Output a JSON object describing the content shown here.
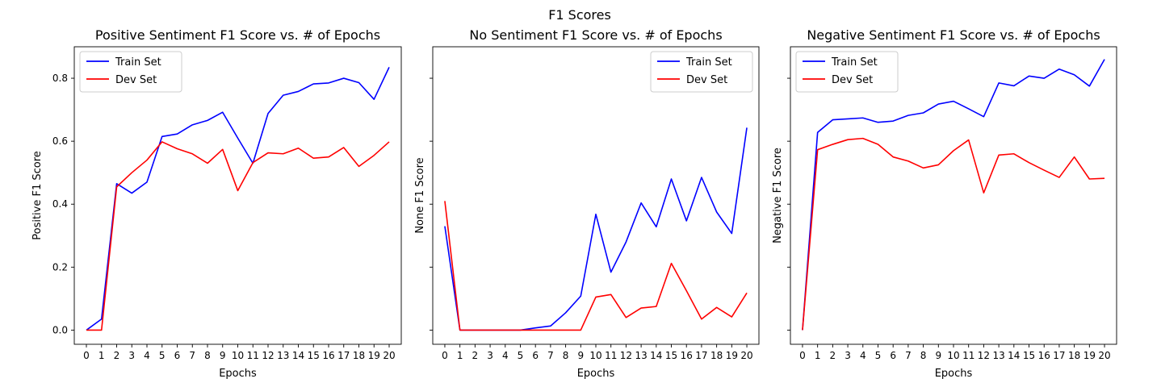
{
  "figure": {
    "title": "F1 Scores"
  },
  "chart_data": [
    {
      "type": "line",
      "title": "Positive Sentiment F1 Score vs. # of Epochs",
      "xlabel": "Epochs",
      "ylabel": "Positive F1 Score",
      "xlim": [
        -0.8,
        20.8
      ],
      "ylim": [
        -0.045,
        0.9
      ],
      "xticks": [
        0,
        1,
        2,
        3,
        4,
        5,
        6,
        7,
        8,
        9,
        10,
        11,
        12,
        13,
        14,
        15,
        16,
        17,
        18,
        19,
        20
      ],
      "xtick_labels": [
        "0",
        "1",
        "2",
        "3",
        "4",
        "5",
        "6",
        "7",
        "8",
        "9",
        "10",
        "11",
        "12",
        "13",
        "14",
        "15",
        "16",
        "17",
        "18",
        "19",
        "20"
      ],
      "yticks": [
        0.0,
        0.2,
        0.4,
        0.6,
        0.8
      ],
      "ytick_labels": [
        "0.0",
        "0.2",
        "0.4",
        "0.6",
        "0.8"
      ],
      "grid": false,
      "legend": "upper-left",
      "series": [
        {
          "name": "Train Set",
          "color": "#0000ff",
          "values": [
            0.0,
            0.035,
            0.465,
            0.435,
            0.47,
            0.615,
            0.623,
            0.652,
            0.666,
            0.692,
            0.61,
            0.53,
            0.688,
            0.746,
            0.758,
            0.782,
            0.785,
            0.8,
            0.786,
            0.733,
            0.835
          ]
        },
        {
          "name": "Dev Set",
          "color": "#ff0000",
          "values": [
            0.0,
            0.0,
            0.455,
            0.5,
            0.54,
            0.598,
            0.576,
            0.56,
            0.53,
            0.574,
            0.443,
            0.532,
            0.563,
            0.56,
            0.578,
            0.546,
            0.55,
            0.58,
            0.52,
            0.555,
            0.598
          ]
        }
      ]
    },
    {
      "type": "line",
      "title": "No Sentiment F1 Score vs. # of Epochs",
      "xlabel": "Epochs",
      "ylabel": "None F1 Score",
      "xlim": [
        -0.8,
        20.8
      ],
      "ylim": [
        -0.045,
        0.9
      ],
      "xticks": [
        0,
        1,
        2,
        3,
        4,
        5,
        6,
        7,
        8,
        9,
        10,
        11,
        12,
        13,
        14,
        15,
        16,
        17,
        18,
        19,
        20
      ],
      "xtick_labels": [
        "0",
        "1",
        "2",
        "3",
        "4",
        "5",
        "6",
        "7",
        "8",
        "9",
        "10",
        "11",
        "12",
        "13",
        "14",
        "15",
        "16",
        "17",
        "18",
        "19",
        "20"
      ],
      "yticks": [
        0.0,
        0.2,
        0.4,
        0.6,
        0.8
      ],
      "ytick_labels": [],
      "grid": false,
      "legend": "upper-right",
      "series": [
        {
          "name": "Train Set",
          "color": "#0000ff",
          "values": [
            0.33,
            0.0,
            0.0,
            0.0,
            0.0,
            0.0,
            0.007,
            0.013,
            0.055,
            0.108,
            0.368,
            0.184,
            0.28,
            0.404,
            0.328,
            0.48,
            0.347,
            0.485,
            0.375,
            0.307,
            0.643
          ]
        },
        {
          "name": "Dev Set",
          "color": "#ff0000",
          "values": [
            0.41,
            0.0,
            0.0,
            0.0,
            0.0,
            0.0,
            0.0,
            0.0,
            0.0,
            0.0,
            0.105,
            0.113,
            0.04,
            0.07,
            0.075,
            0.212,
            0.125,
            0.035,
            0.072,
            0.042,
            0.118
          ]
        }
      ]
    },
    {
      "type": "line",
      "title": "Negative Sentiment F1 Score vs. # of Epochs",
      "xlabel": "Epochs",
      "ylabel": "Negative F1 Score",
      "xlim": [
        -0.8,
        20.8
      ],
      "ylim": [
        -0.045,
        0.9
      ],
      "xticks": [
        0,
        1,
        2,
        3,
        4,
        5,
        6,
        7,
        8,
        9,
        10,
        11,
        12,
        13,
        14,
        15,
        16,
        17,
        18,
        19,
        20
      ],
      "xtick_labels": [
        "0",
        "1",
        "2",
        "3",
        "4",
        "5",
        "6",
        "7",
        "8",
        "9",
        "10",
        "11",
        "12",
        "13",
        "14",
        "15",
        "16",
        "17",
        "18",
        "19",
        "20"
      ],
      "yticks": [
        0.0,
        0.2,
        0.4,
        0.6,
        0.8
      ],
      "ytick_labels": [],
      "grid": false,
      "legend": "upper-left",
      "series": [
        {
          "name": "Train Set",
          "color": "#0000ff",
          "values": [
            0.0,
            0.628,
            0.668,
            0.671,
            0.674,
            0.66,
            0.664,
            0.682,
            0.69,
            0.718,
            0.727,
            0.703,
            0.678,
            0.785,
            0.776,
            0.807,
            0.8,
            0.829,
            0.811,
            0.775,
            0.86
          ]
        },
        {
          "name": "Dev Set",
          "color": "#ff0000",
          "values": [
            0.0,
            0.573,
            0.59,
            0.605,
            0.609,
            0.59,
            0.55,
            0.537,
            0.515,
            0.525,
            0.57,
            0.604,
            0.436,
            0.556,
            0.56,
            0.532,
            0.508,
            0.485,
            0.55,
            0.48,
            0.482
          ]
        }
      ]
    }
  ]
}
